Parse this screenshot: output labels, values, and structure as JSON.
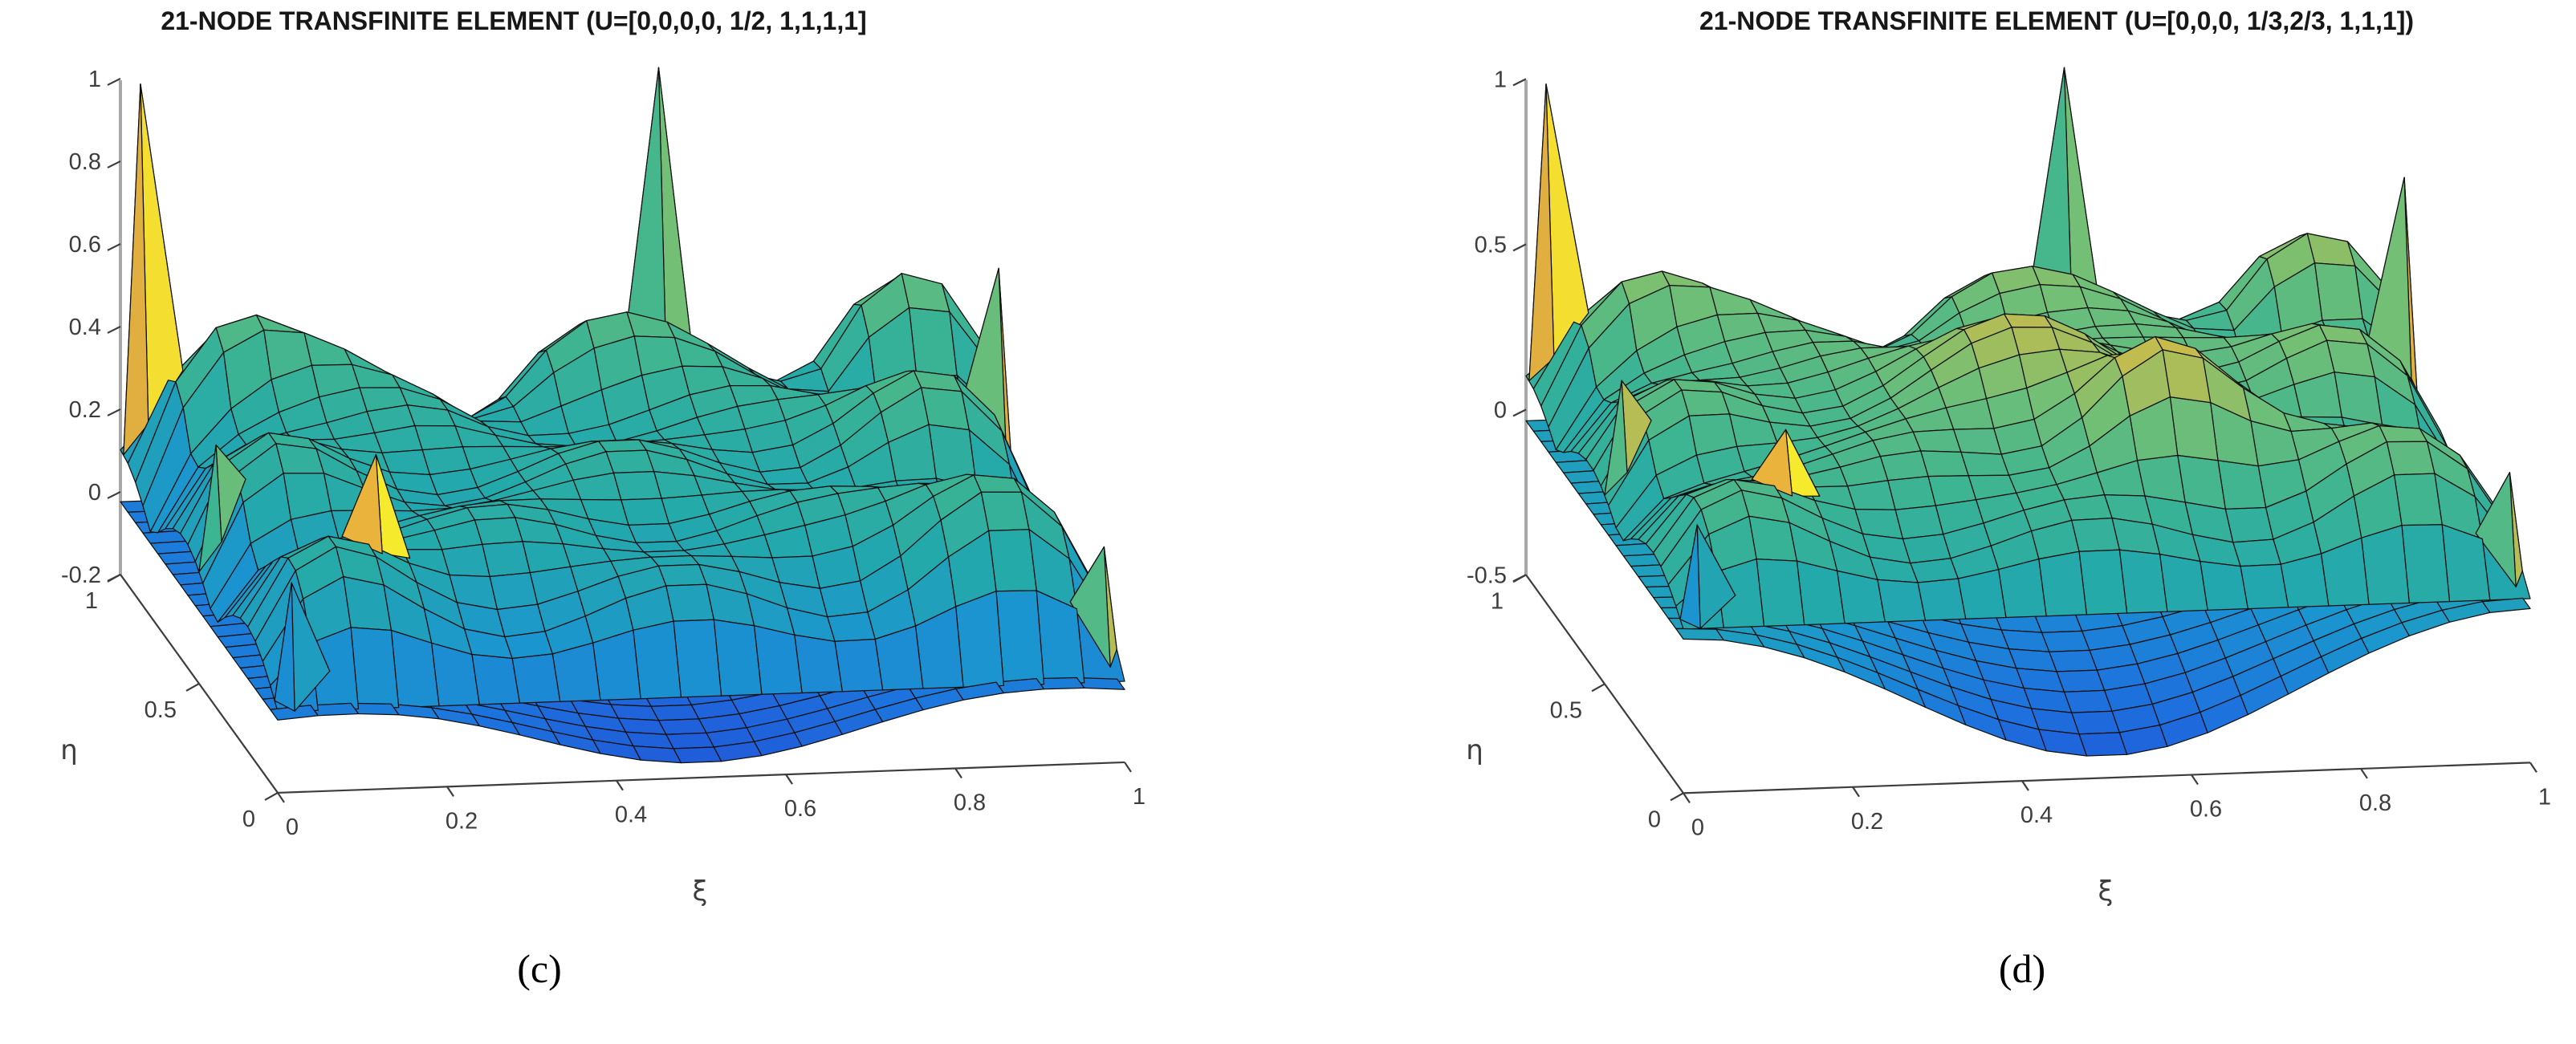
{
  "figure": {
    "background": "#ffffff",
    "panel_count": 2
  },
  "chart_data": {
    "type": "surface",
    "description": "Two MATLAB-style 3D surf plots of 21-node transfinite element basis/shape functions over the unit square, parula-like colormap, black mesh lines, corner and interior node spikes.",
    "style": {
      "mesh_color": "#101010",
      "axis_color": "#3d3d3d",
      "zaxis_line_color": "#a8a8a8",
      "colormap": [
        [
          0.0,
          "#2152d9"
        ],
        [
          0.12,
          "#1d74dd"
        ],
        [
          0.25,
          "#1b95cf"
        ],
        [
          0.38,
          "#24a9ab"
        ],
        [
          0.5,
          "#3db492"
        ],
        [
          0.62,
          "#72bf75"
        ],
        [
          0.72,
          "#c6bc4c"
        ],
        [
          0.82,
          "#e8aa3d"
        ],
        [
          0.92,
          "#f2d535"
        ],
        [
          1.0,
          "#f6f127"
        ]
      ]
    },
    "plots": [
      {
        "id": "c",
        "title": "21-NODE TRANSFINITE ELEMENT (U=[0,0,0,0, 1/2, 1,1,1,1]",
        "caption": "(c)",
        "knot_vector": "[0,0,0,0, 1/2, 1,1,1,1]",
        "xlabel": "ξ",
        "ylabel": "η",
        "xlim": [
          0,
          1
        ],
        "ylim": [
          0,
          1
        ],
        "zlim": [
          -0.2,
          1
        ],
        "xticks": [
          "0",
          "0.2",
          "0.4",
          "0.6",
          "0.8",
          "1"
        ],
        "yticks": [
          "0",
          "0.5",
          "1"
        ],
        "zticks": [
          "-0.2",
          "0",
          "0.2",
          "0.4",
          "0.6",
          "0.8",
          "1"
        ],
        "grid_cells": 21,
        "surface_model": {
          "dome": {
            "amp": 0.3,
            "exp": 0.45
          },
          "edge_bumps": [
            {
              "dir": "x",
              "c": 0.87,
              "amp": 0.26,
              "s": 0.018,
              "f": 2.5
            },
            {
              "dir": "y",
              "c": 0.89,
              "amp": 0.26,
              "s": 0.018,
              "f": 2.5
            },
            {
              "dir": "y",
              "c": 0.08,
              "amp": 0.18,
              "s": 0.012,
              "f": 2.5
            }
          ],
          "gauss": [],
          "ripple": {
            "amp": 0.05,
            "f": 5
          },
          "skirt": {
            "base": -0.02,
            "depth": 0.1,
            "px": 1.2,
            "py": 1.6,
            "wave": 0.04
          }
        },
        "peaks": [
          {
            "x": 0.02,
            "y": 0.98,
            "h": 1.0,
            "w": 0.05,
            "c1": 0.95,
            "c2": 0.8
          },
          {
            "x": 0.63,
            "y": 0.97,
            "h": 1.0,
            "w": 0.045,
            "c1": 0.62,
            "c2": 0.52
          },
          {
            "x": 0.985,
            "y": 0.72,
            "h": 0.62,
            "w": 0.045,
            "c1": 0.8,
            "c2": 0.6
          },
          {
            "x": 0.155,
            "y": 0.21,
            "h": 0.5,
            "w": 0.04,
            "c1": 0.98,
            "c2": 0.84
          },
          {
            "x": 0.02,
            "y": 0.5,
            "h": 0.38,
            "w": 0.035,
            "c1": 0.6,
            "c2": 0.5
          },
          {
            "x": 0.02,
            "y": 0.02,
            "h": 0.3,
            "w": 0.045,
            "c1": 0.3,
            "c2": 0.22
          },
          {
            "x": 0.985,
            "y": 0.05,
            "h": 0.3,
            "w": 0.04,
            "c1": 0.7,
            "c2": 0.55
          }
        ]
      },
      {
        "id": "d",
        "title": "21-NODE TRANSFINITE ELEMENT (U=[0,0,0, 1/3,2/3, 1,1,1])",
        "caption": "(d)",
        "knot_vector": "[0,0,0, 1/3,2/3, 1,1,1]",
        "xlabel": "ξ",
        "ylabel": "η",
        "xlim": [
          0,
          1
        ],
        "ylim": [
          0,
          1
        ],
        "zlim": [
          -0.5,
          1
        ],
        "xticks": [
          "0",
          "0.2",
          "0.4",
          "0.6",
          "0.8",
          "1"
        ],
        "yticks": [
          "0",
          "0.5",
          "1"
        ],
        "zticks": [
          "-0.5",
          "0",
          "0.5",
          "1"
        ],
        "grid_cells": 21,
        "surface_model": {
          "dome": {
            "amp": 0.3,
            "exp": 0.45
          },
          "edge_bumps": [
            {
              "dir": "x",
              "c": 0.87,
              "amp": 0.26,
              "s": 0.018,
              "f": 2.5
            },
            {
              "dir": "y",
              "c": 0.89,
              "amp": 0.26,
              "s": 0.018,
              "f": 2.5
            },
            {
              "dir": "y",
              "c": 0.08,
              "amp": 0.18,
              "s": 0.012,
              "f": 2.5
            }
          ],
          "gauss": [
            {
              "x": 0.48,
              "y": 0.52,
              "amp": 0.22,
              "s": 0.035
            },
            {
              "x": 0.62,
              "y": 0.3,
              "amp": 0.3,
              "s": 0.012
            }
          ],
          "ripple": {
            "amp": 0.05,
            "f": 5
          },
          "skirt": {
            "base": -0.03,
            "depth": 0.35,
            "px": 1.3,
            "py": 2.0,
            "wave": 0.05
          }
        },
        "peaks": [
          {
            "x": 0.02,
            "y": 0.98,
            "h": 1.0,
            "w": 0.05,
            "c1": 0.95,
            "c2": 0.8
          },
          {
            "x": 0.63,
            "y": 0.97,
            "h": 1.0,
            "w": 0.045,
            "c1": 0.62,
            "c2": 0.52
          },
          {
            "x": 0.985,
            "y": 0.72,
            "h": 0.8,
            "w": 0.045,
            "c1": 0.8,
            "c2": 0.62
          },
          {
            "x": 0.16,
            "y": 0.21,
            "h": 0.45,
            "w": 0.04,
            "c1": 0.98,
            "c2": 0.84
          },
          {
            "x": 0.02,
            "y": 0.5,
            "h": 0.42,
            "w": 0.035,
            "c1": 0.7,
            "c2": 0.55
          },
          {
            "x": 0.02,
            "y": 0.02,
            "h": 0.3,
            "w": 0.045,
            "c1": 0.35,
            "c2": 0.25
          },
          {
            "x": 0.985,
            "y": 0.05,
            "h": 0.35,
            "w": 0.04,
            "c1": 0.7,
            "c2": 0.55
          }
        ]
      }
    ]
  }
}
